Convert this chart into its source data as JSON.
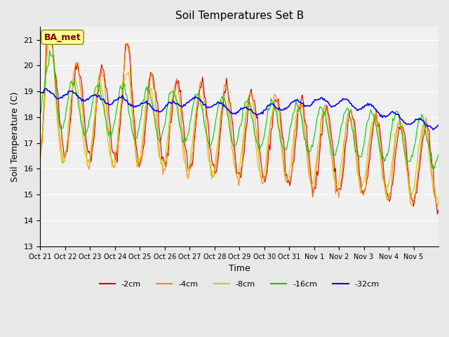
{
  "title": "Soil Temperatures Set B",
  "xlabel": "Time",
  "ylabel": "Soil Temperature (C)",
  "ylim": [
    13.0,
    21.5
  ],
  "yticks": [
    13.0,
    14.0,
    15.0,
    16.0,
    17.0,
    18.0,
    19.0,
    20.0,
    21.0
  ],
  "colors": {
    "-2cm": "#cc0000",
    "-4cm": "#ff8800",
    "-8cm": "#cccc00",
    "-16cm": "#00cc00",
    "-32cm": "#0000ff"
  },
  "legend_labels": [
    "-2cm",
    "-4cm",
    "-8cm",
    "-16cm",
    "-32cm"
  ],
  "annotation_text": "BA_met",
  "annotation_color": "#8b0000",
  "annotation_bg": "#ffff99",
  "background_color": "#e8e8e8",
  "plot_bg": "#f0f0f0",
  "x_tick_labels": [
    "Oct 21",
    "Oct 22",
    "Oct 23",
    "Oct 24",
    "Oct 25",
    "Oct 26",
    "Oct 27",
    "Oct 28",
    "Oct 29",
    "Oct 30",
    "Oct 31",
    "Nov 1",
    "Nov 2",
    "Nov 3",
    "Nov 4",
    "Nov 5"
  ],
  "num_points": 384
}
